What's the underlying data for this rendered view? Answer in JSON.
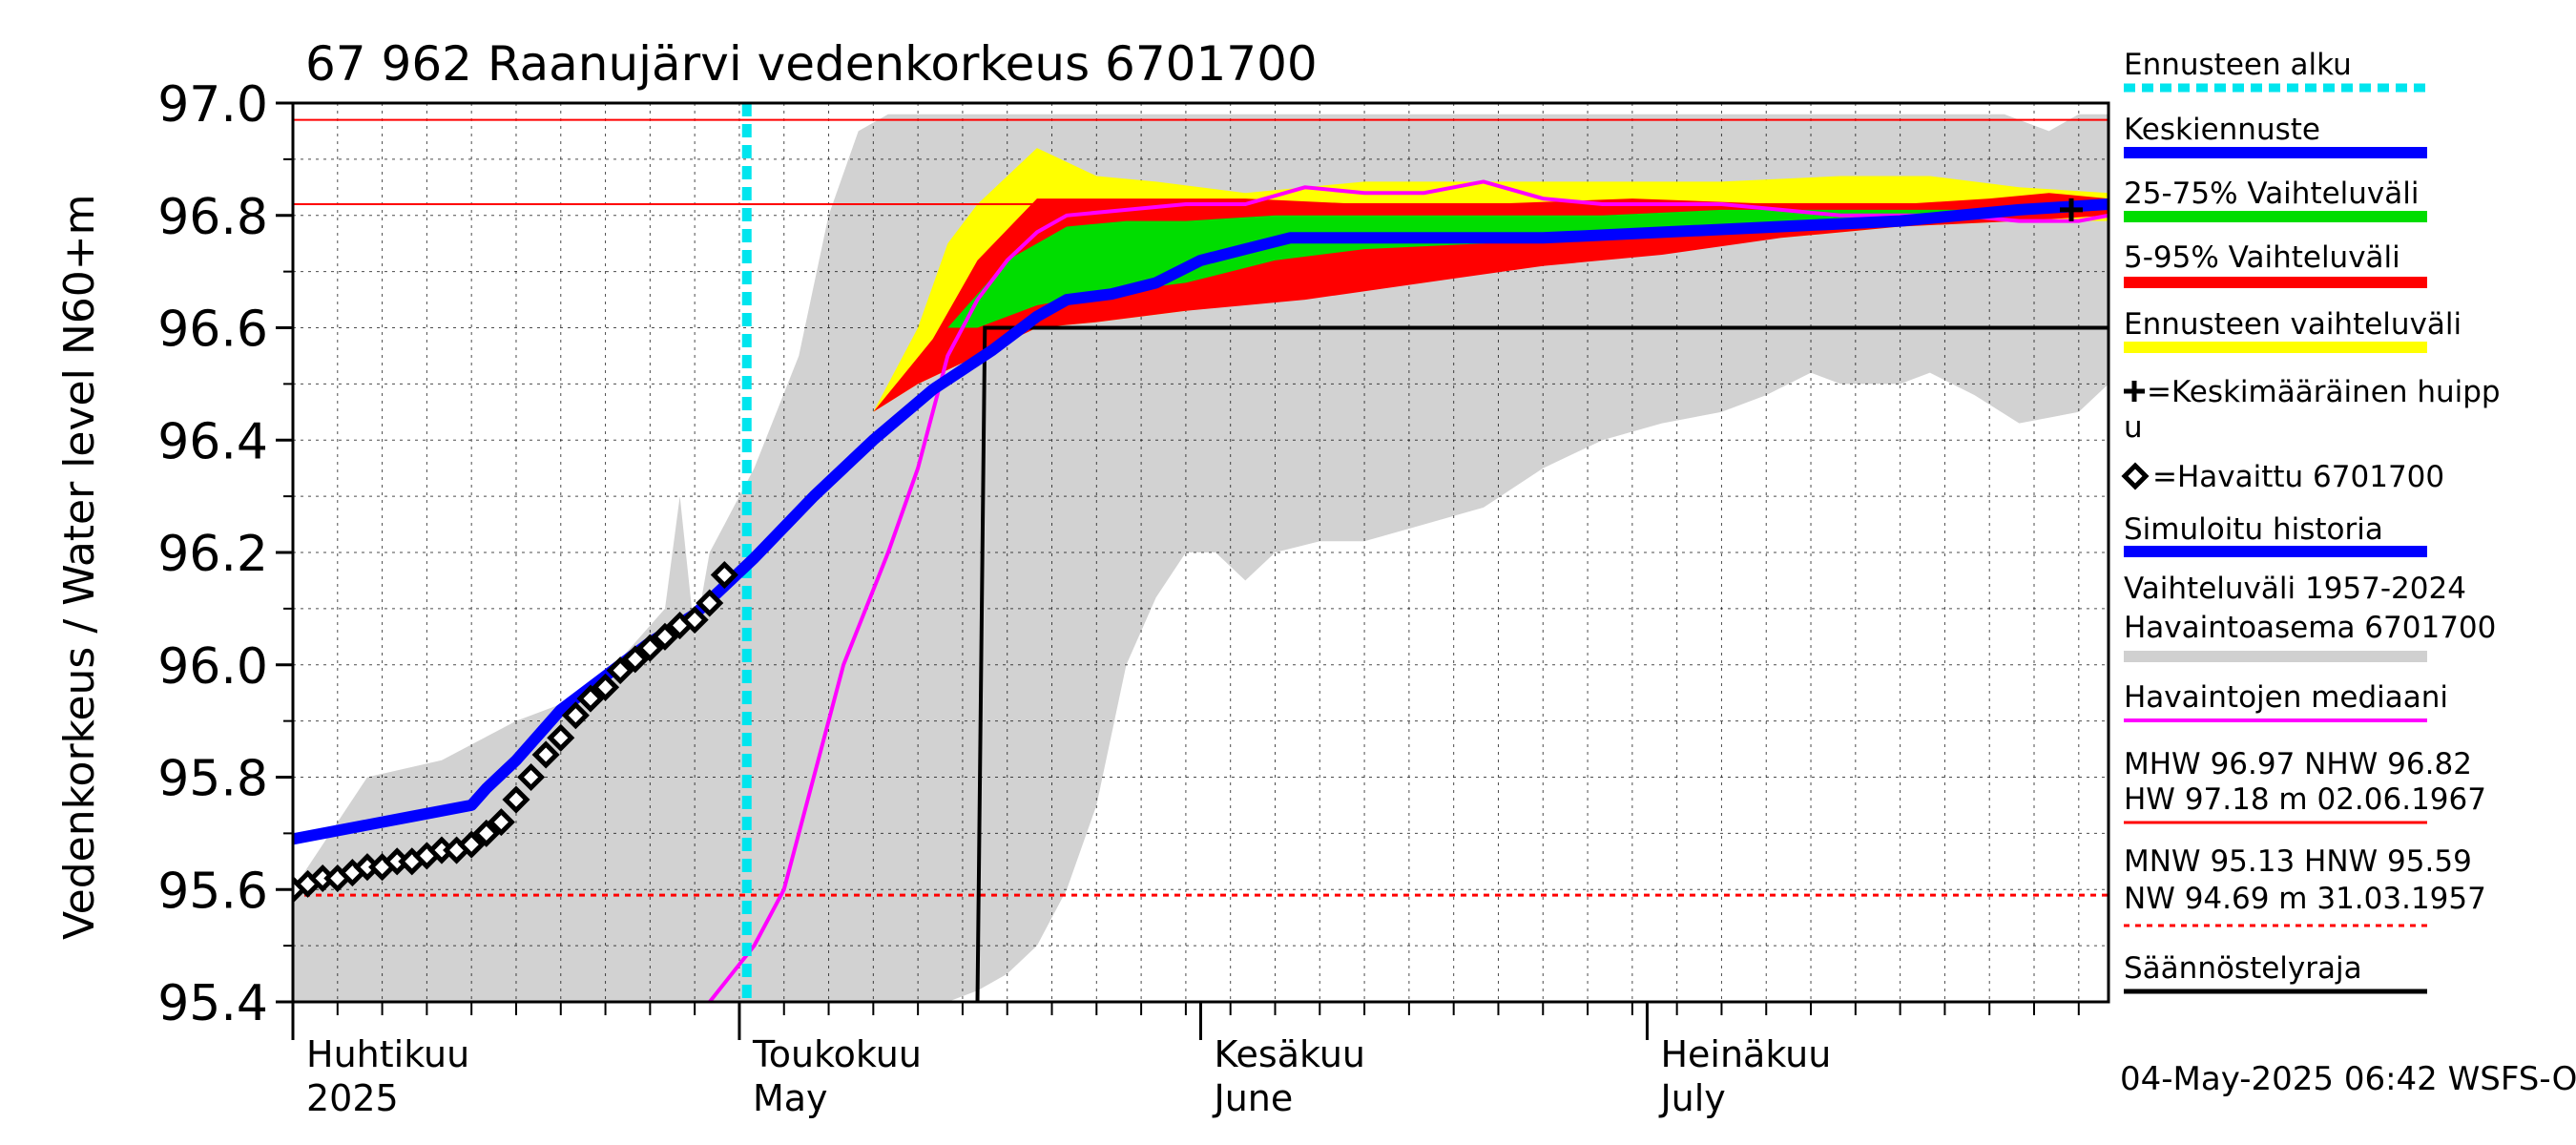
{
  "chart_data": {
    "type": "line",
    "title": "67 962 Raanujärvi vedenkorkeus 6701700",
    "ylabel": "Vedenkorkeus / Water level    N60+m",
    "ylim": [
      95.4,
      97.0
    ],
    "yticks": [
      "95.4",
      "95.6",
      "95.8",
      "96.0",
      "96.2",
      "96.4",
      "96.6",
      "96.8",
      "97.0"
    ],
    "xlim_days": [
      0,
      122
    ],
    "month_labels": [
      {
        "fi": "Huhtikuu",
        "en": "2025",
        "day": 0
      },
      {
        "fi": "Toukokuu",
        "en": "May",
        "day": 30
      },
      {
        "fi": "Kesäkuu",
        "en": "June",
        "day": 61
      },
      {
        "fi": "Heinäkuu",
        "en": "July",
        "day": 91
      }
    ],
    "forecast_start_day": 30.5,
    "ref_lines": {
      "mhw": 96.97,
      "nhw": 96.82,
      "hnw_dotted": 95.59
    },
    "regulation_limit": [
      [
        46,
        95.4
      ],
      [
        46.5,
        96.6
      ],
      [
        122,
        96.6
      ]
    ],
    "history_range": {
      "upper": [
        [
          0,
          95.6
        ],
        [
          5,
          95.8
        ],
        [
          10,
          95.83
        ],
        [
          15,
          95.9
        ],
        [
          20,
          95.95
        ],
        [
          25,
          96.1
        ],
        [
          26,
          96.3
        ],
        [
          27,
          96.05
        ],
        [
          28,
          96.2
        ],
        [
          29,
          96.25
        ],
        [
          31,
          96.35
        ],
        [
          34,
          96.55
        ],
        [
          36,
          96.8
        ],
        [
          38,
          96.95
        ],
        [
          40,
          96.98
        ],
        [
          44,
          96.98
        ],
        [
          48,
          96.98
        ],
        [
          52,
          96.98
        ],
        [
          60,
          96.98
        ],
        [
          80,
          96.98
        ],
        [
          100,
          96.98
        ],
        [
          115,
          96.98
        ],
        [
          118,
          96.95
        ],
        [
          120,
          96.98
        ],
        [
          122,
          96.98
        ]
      ],
      "lower": [
        [
          122,
          96.5
        ],
        [
          120,
          96.45
        ],
        [
          116,
          96.43
        ],
        [
          113,
          96.48
        ],
        [
          110,
          96.52
        ],
        [
          108,
          96.5
        ],
        [
          104,
          96.5
        ],
        [
          102,
          96.52
        ],
        [
          99,
          96.48
        ],
        [
          96,
          96.45
        ],
        [
          92,
          96.43
        ],
        [
          88,
          96.4
        ],
        [
          84,
          96.35
        ],
        [
          80,
          96.28
        ],
        [
          76,
          96.25
        ],
        [
          72,
          96.22
        ],
        [
          69,
          96.22
        ],
        [
          66,
          96.2
        ],
        [
          64,
          96.15
        ],
        [
          62,
          96.2
        ],
        [
          60,
          96.2
        ],
        [
          58,
          96.12
        ],
        [
          56,
          96.0
        ],
        [
          54,
          95.75
        ],
        [
          52,
          95.6
        ],
        [
          50,
          95.5
        ],
        [
          48,
          95.45
        ],
        [
          46,
          95.42
        ],
        [
          44,
          95.4
        ],
        [
          0,
          95.4
        ]
      ]
    },
    "forecast_range": {
      "upper": [
        [
          39,
          96.45
        ],
        [
          42,
          96.6
        ],
        [
          44,
          96.75
        ],
        [
          46,
          96.82
        ],
        [
          50,
          96.92
        ],
        [
          54,
          96.87
        ],
        [
          58,
          96.86
        ],
        [
          64,
          96.84
        ],
        [
          72,
          96.86
        ],
        [
          80,
          96.86
        ],
        [
          88,
          96.86
        ],
        [
          96,
          96.86
        ],
        [
          104,
          96.87
        ],
        [
          110,
          96.87
        ],
        [
          116,
          96.85
        ],
        [
          122,
          96.84
        ]
      ],
      "lower": [
        [
          122,
          96.79
        ],
        [
          116,
          96.79
        ],
        [
          108,
          96.78
        ],
        [
          100,
          96.76
        ],
        [
          92,
          96.74
        ],
        [
          84,
          96.72
        ],
        [
          76,
          96.68
        ],
        [
          68,
          96.66
        ],
        [
          60,
          96.63
        ],
        [
          54,
          96.61
        ],
        [
          50,
          96.6
        ],
        [
          46,
          96.55
        ],
        [
          42,
          96.5
        ],
        [
          39,
          96.45
        ]
      ]
    },
    "range_5_95": {
      "upper": [
        [
          39,
          96.45
        ],
        [
          43,
          96.58
        ],
        [
          46,
          96.72
        ],
        [
          50,
          96.83
        ],
        [
          56,
          96.83
        ],
        [
          64,
          96.83
        ],
        [
          72,
          96.82
        ],
        [
          80,
          96.82
        ],
        [
          90,
          96.83
        ],
        [
          100,
          96.82
        ],
        [
          108,
          96.82
        ],
        [
          114,
          96.83
        ],
        [
          118,
          96.84
        ],
        [
          122,
          96.83
        ]
      ],
      "lower": [
        [
          122,
          96.8
        ],
        [
          116,
          96.79
        ],
        [
          108,
          96.78
        ],
        [
          100,
          96.76
        ],
        [
          92,
          96.73
        ],
        [
          84,
          96.71
        ],
        [
          76,
          96.68
        ],
        [
          68,
          96.65
        ],
        [
          60,
          96.63
        ],
        [
          54,
          96.61
        ],
        [
          50,
          96.6
        ],
        [
          46,
          96.55
        ],
        [
          42,
          96.5
        ],
        [
          39,
          96.45
        ]
      ]
    },
    "range_25_75": {
      "upper": [
        [
          44,
          96.6
        ],
        [
          48,
          96.72
        ],
        [
          52,
          96.78
        ],
        [
          56,
          96.79
        ],
        [
          60,
          96.79
        ],
        [
          66,
          96.8
        ],
        [
          72,
          96.8
        ],
        [
          80,
          96.8
        ],
        [
          88,
          96.8
        ],
        [
          96,
          96.81
        ],
        [
          104,
          96.81
        ],
        [
          112,
          96.81
        ],
        [
          122,
          96.82
        ]
      ],
      "lower": [
        [
          122,
          96.81
        ],
        [
          112,
          96.8
        ],
        [
          104,
          96.79
        ],
        [
          96,
          96.78
        ],
        [
          88,
          96.77
        ],
        [
          80,
          96.75
        ],
        [
          72,
          96.74
        ],
        [
          66,
          96.72
        ],
        [
          60,
          96.68
        ],
        [
          54,
          96.66
        ],
        [
          50,
          96.64
        ],
        [
          46,
          96.6
        ],
        [
          44,
          96.6
        ]
      ]
    },
    "median_history": [
      [
        28,
        95.4
      ],
      [
        31,
        95.5
      ],
      [
        33,
        95.6
      ],
      [
        35,
        95.8
      ],
      [
        37,
        96.0
      ],
      [
        40,
        96.2
      ],
      [
        42,
        96.35
      ],
      [
        43,
        96.45
      ],
      [
        44,
        96.55
      ],
      [
        46,
        96.65
      ],
      [
        48,
        96.72
      ],
      [
        50,
        96.77
      ],
      [
        52,
        96.8
      ],
      [
        56,
        96.81
      ],
      [
        60,
        96.82
      ],
      [
        64,
        96.82
      ],
      [
        68,
        96.85
      ],
      [
        72,
        96.84
      ],
      [
        76,
        96.84
      ],
      [
        78,
        96.85
      ],
      [
        80,
        96.86
      ],
      [
        84,
        96.83
      ],
      [
        88,
        96.82
      ],
      [
        92,
        96.82
      ],
      [
        96,
        96.82
      ],
      [
        100,
        96.81
      ],
      [
        104,
        96.8
      ],
      [
        108,
        96.8
      ],
      [
        112,
        96.8
      ],
      [
        116,
        96.79
      ],
      [
        118,
        96.79
      ],
      [
        120,
        96.79
      ],
      [
        122,
        96.8
      ]
    ],
    "mean_forecast": [
      [
        0,
        95.69
      ],
      [
        4,
        95.71
      ],
      [
        8,
        95.73
      ],
      [
        12,
        95.75
      ],
      [
        13,
        95.78
      ],
      [
        15,
        95.83
      ],
      [
        18,
        95.92
      ],
      [
        21,
        95.98
      ],
      [
        24,
        96.04
      ],
      [
        27,
        96.09
      ],
      [
        29,
        96.14
      ],
      [
        31,
        96.19
      ],
      [
        35,
        96.3
      ],
      [
        39,
        96.4
      ],
      [
        43,
        96.49
      ],
      [
        47,
        96.56
      ],
      [
        50,
        96.62
      ],
      [
        52,
        96.65
      ],
      [
        55,
        96.66
      ],
      [
        58,
        96.68
      ],
      [
        61,
        96.72
      ],
      [
        64,
        96.74
      ],
      [
        67,
        96.76
      ],
      [
        70,
        96.76
      ],
      [
        76,
        96.76
      ],
      [
        84,
        96.76
      ],
      [
        92,
        96.77
      ],
      [
        100,
        96.78
      ],
      [
        108,
        96.79
      ],
      [
        116,
        96.81
      ],
      [
        122,
        96.82
      ]
    ],
    "observed_days": [
      0,
      1,
      2,
      3,
      4,
      5,
      6,
      7,
      8,
      9,
      10,
      11,
      12,
      13,
      14,
      15,
      16,
      17,
      18,
      19,
      20,
      21,
      22,
      23,
      24,
      25,
      26,
      27,
      28,
      29
    ],
    "observed_values": [
      95.6,
      95.61,
      95.62,
      95.62,
      95.63,
      95.64,
      95.64,
      95.65,
      95.65,
      95.66,
      95.67,
      95.67,
      95.68,
      95.7,
      95.72,
      95.76,
      95.8,
      95.84,
      95.87,
      95.91,
      95.94,
      95.96,
      95.99,
      96.01,
      96.03,
      96.05,
      96.07,
      96.08,
      96.11,
      96.16
    ],
    "mean_peak": {
      "day": 119.5,
      "value": 96.81
    }
  },
  "legend": [
    {
      "key": "forecast_start",
      "label": "Ennusteen alku",
      "color": "#00e5ee",
      "style": "dotted"
    },
    {
      "key": "mean",
      "label": "Keskiennuste",
      "color": "#0000ff"
    },
    {
      "key": "p25_75",
      "label": "25-75% Vaihteluväli",
      "color": "#00dd00"
    },
    {
      "key": "p5_95",
      "label": "5-95% Vaihteluväli",
      "color": "#ff0000"
    },
    {
      "key": "forecast_range",
      "label": "Ennusteen vaihteluväli",
      "color": "#ffff00"
    },
    {
      "key": "peak",
      "label1": "=Keskimääräinen huipp",
      "label2": "u"
    },
    {
      "key": "observed",
      "label": "=Havaittu 6701700"
    },
    {
      "key": "sim_history",
      "label": "Simuloitu historia",
      "color": "#0000ff"
    },
    {
      "key": "hist_range",
      "label1": "Vaihteluväli 1957-2024",
      "label2": " Havaintoasema 6701700",
      "color": "#d0d0d0"
    },
    {
      "key": "median",
      "label": "Havaintojen mediaani",
      "color": "#ff00ff"
    },
    {
      "key": "hw",
      "label1": "MHW  96.97 NHW  96.82",
      "label2": "HW  97.18 m 02.06.1967",
      "color": "#ff0000"
    },
    {
      "key": "nw",
      "label1": "MNW  95.13 HNW  95.59",
      "label2": "NW  94.69 m 31.03.1957",
      "color": "#ff0000",
      "style": "dotted"
    },
    {
      "key": "reg",
      "label": "Säännöstelyraja",
      "color": "#000000"
    }
  ],
  "footer": "04-May-2025 06:42 WSFS-O"
}
